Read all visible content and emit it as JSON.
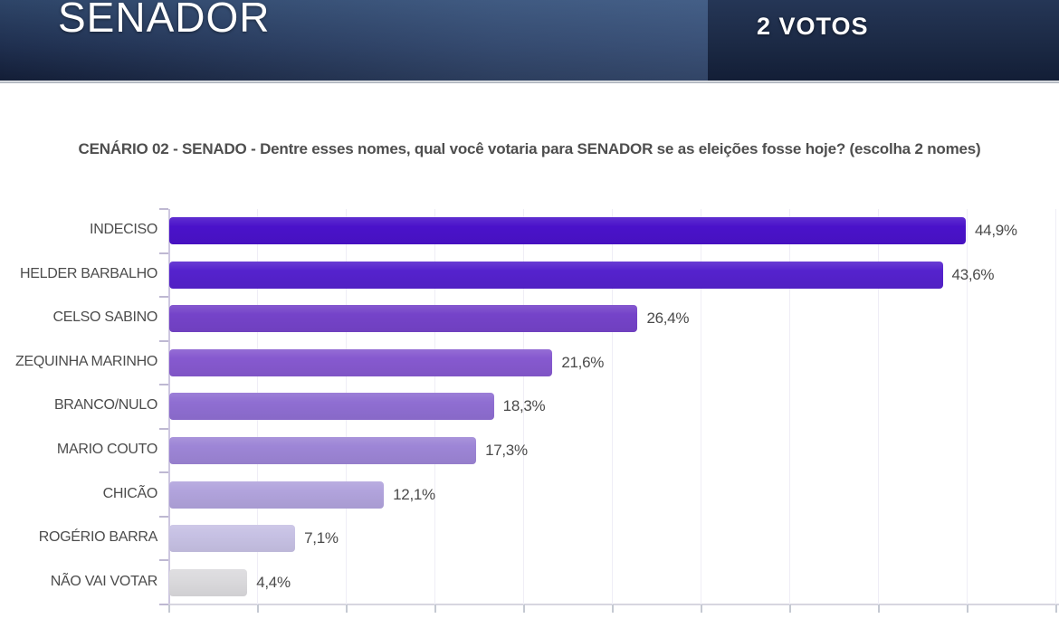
{
  "header": {
    "title": "SENADOR",
    "votes_label": "2 VOTOS"
  },
  "colors": {
    "header_navy_light": "#2e4568",
    "header_navy_dark": "#121c34",
    "label_gray": "#4c4c4c",
    "axis_gray": "#d7d6e0"
  },
  "chart_data": {
    "type": "bar",
    "orientation": "horizontal",
    "title": "CENÁRIO 02 - SENADO - Dentre esses nomes, qual você votaria para SENADOR se as eleições fosse hoje? (escolha 2 nomes)",
    "categories": [
      "INDECISO",
      "HELDER BARBALHO",
      "CELSO SABINO",
      "ZEQUINHA MARINHO",
      "BRANCO/NULO",
      "MARIO COUTO",
      "CHICÃO",
      "ROGÉRIO BARRA",
      "NÃO VAI VOTAR"
    ],
    "values": [
      44.9,
      43.6,
      26.4,
      21.6,
      18.3,
      17.3,
      12.1,
      7.1,
      4.4
    ],
    "value_labels": [
      "44,9%",
      "43,6%",
      "26,4%",
      "21,6%",
      "18,3%",
      "17,3%",
      "12,1%",
      "7,1%",
      "4,4%"
    ],
    "bar_colors": [
      "#4a12ca",
      "#5522cd",
      "#7543c9",
      "#8659cf",
      "#8f6ed2",
      "#9d85d6",
      "#b1a3dc",
      "#c7c1e4",
      "#dbdadd"
    ],
    "xlabel": "",
    "ylabel": "",
    "xlim": [
      0,
      50
    ],
    "gridline_step": 5,
    "grid": true,
    "legend": false
  }
}
